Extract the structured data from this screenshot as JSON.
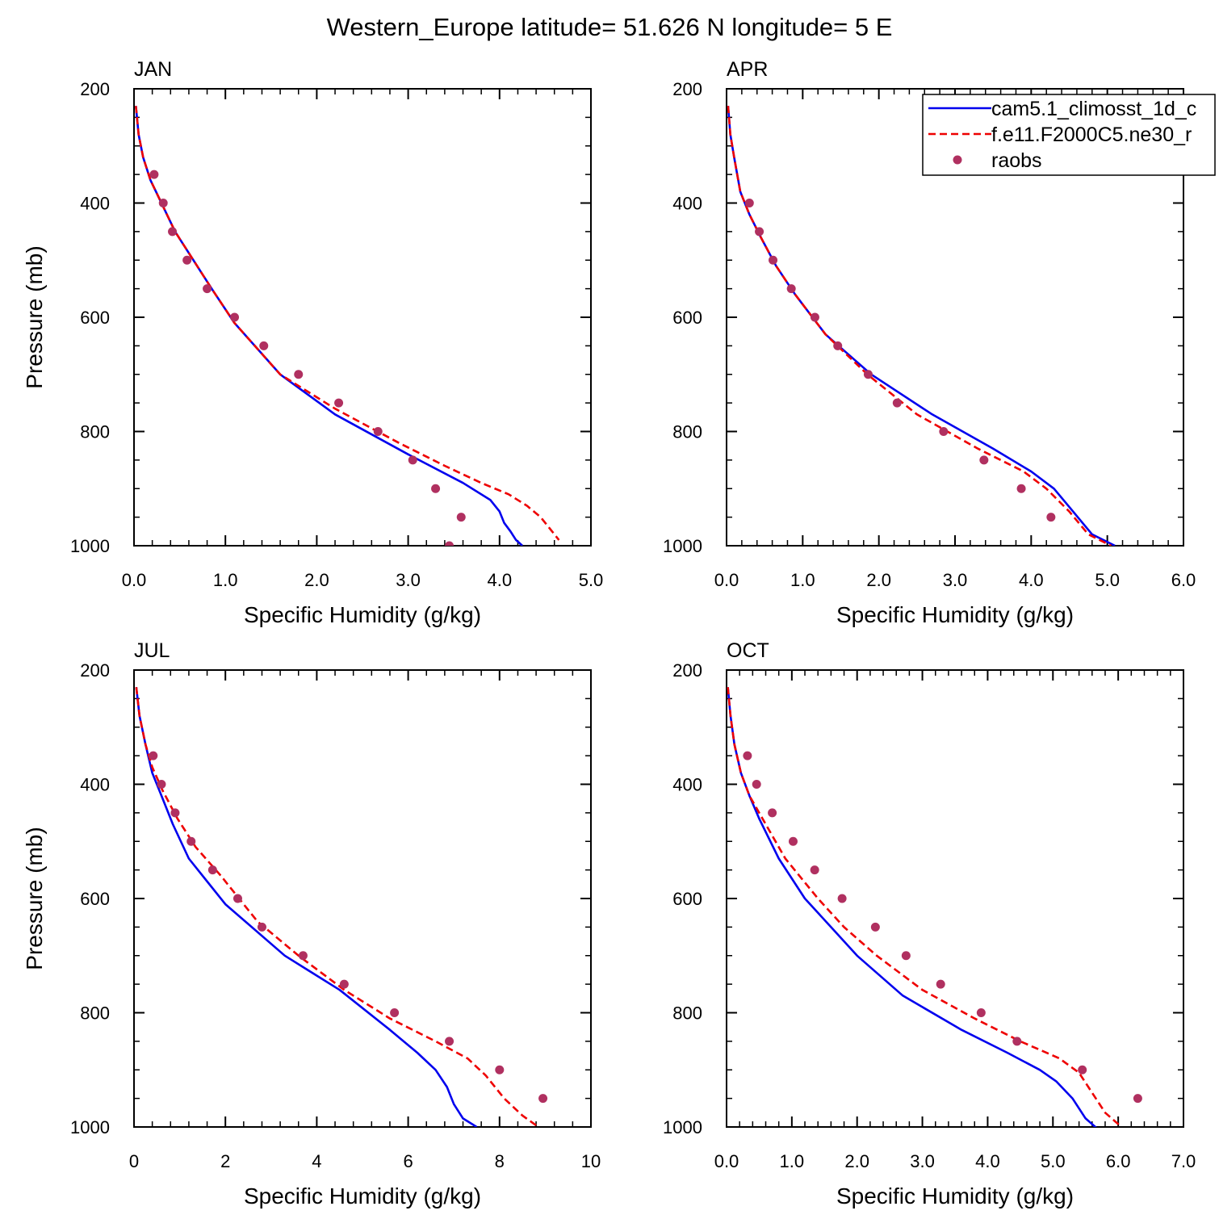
{
  "title": "Western_Europe  latitude= 51.626 N longitude= 5 E",
  "colors": {
    "model1": "#0000ee",
    "model2": "#ee0000",
    "obs": "#b03060"
  },
  "legend": {
    "placement": "top-right of APR panel",
    "entries": [
      {
        "label": "cam5.1_climosst_1d_c",
        "style": "solid",
        "color": "#0000ee"
      },
      {
        "label": "f.e11.F2000C5.ne30_r",
        "style": "dashed",
        "color": "#ee0000"
      },
      {
        "label": "raobs",
        "style": "marker",
        "color": "#b03060"
      }
    ]
  },
  "chart_data": [
    {
      "type": "line",
      "panel_label": "JAN",
      "xlabel": "Specific Humidity (g/kg)",
      "ylabel": "Pressure (mb)",
      "xlim": [
        0,
        5
      ],
      "ylim": [
        1000,
        200
      ],
      "xticks": [
        0,
        1,
        2,
        3,
        4,
        5
      ],
      "xticklabels": [
        "0.0",
        "1.0",
        "2.0",
        "3.0",
        "4.0",
        "5.0"
      ],
      "yticks": [
        200,
        400,
        600,
        800,
        1000
      ],
      "yticklabels": [
        "200",
        "400",
        "600",
        "800",
        "1000"
      ],
      "series": [
        {
          "name": "cam5.1_climosst_1d_c",
          "style": "solid",
          "color": "#0000ee",
          "x": [
            0.02,
            0.05,
            0.1,
            0.18,
            0.3,
            0.45,
            0.65,
            0.85,
            1.1,
            1.6,
            2.2,
            3.0,
            3.6,
            3.9,
            4.0,
            4.05,
            4.12,
            4.18,
            4.25
          ],
          "y": [
            230,
            280,
            320,
            360,
            400,
            450,
            500,
            550,
            610,
            700,
            770,
            840,
            890,
            920,
            940,
            960,
            975,
            990,
            1000
          ]
        },
        {
          "name": "f.e11.F2000C5.ne30_r",
          "style": "dashed",
          "color": "#ee0000",
          "x": [
            0.02,
            0.05,
            0.1,
            0.18,
            0.3,
            0.45,
            0.65,
            0.85,
            1.1,
            1.6,
            2.2,
            2.9,
            3.4,
            3.8,
            4.1,
            4.3,
            4.45,
            4.55,
            4.65
          ],
          "y": [
            230,
            280,
            320,
            360,
            400,
            450,
            500,
            550,
            610,
            700,
            760,
            820,
            860,
            890,
            910,
            930,
            950,
            970,
            990
          ]
        },
        {
          "name": "raobs",
          "style": "marker",
          "color": "#b03060",
          "x": [
            0.22,
            0.32,
            0.42,
            0.58,
            0.8,
            1.1,
            1.42,
            1.8,
            2.24,
            2.67,
            3.05,
            3.3,
            3.58,
            3.45
          ],
          "y": [
            350,
            400,
            450,
            500,
            550,
            600,
            650,
            700,
            750,
            800,
            850,
            900,
            950,
            1000
          ]
        }
      ]
    },
    {
      "type": "line",
      "panel_label": "APR",
      "xlabel": "Specific Humidity (g/kg)",
      "ylabel": "",
      "xlim": [
        0,
        6
      ],
      "ylim": [
        1000,
        200
      ],
      "xticks": [
        0,
        1,
        2,
        3,
        4,
        5,
        6
      ],
      "xticklabels": [
        "0.0",
        "1.0",
        "2.0",
        "3.0",
        "4.0",
        "5.0",
        "6.0"
      ],
      "yticks": [
        200,
        400,
        600,
        800,
        1000
      ],
      "yticklabels": [
        "200",
        "400",
        "600",
        "800",
        "1000"
      ],
      "series": [
        {
          "name": "cam5.1_climosst_1d_c",
          "style": "solid",
          "color": "#0000ee",
          "x": [
            0.02,
            0.05,
            0.1,
            0.18,
            0.3,
            0.45,
            0.65,
            0.9,
            1.3,
            1.9,
            2.7,
            3.5,
            4.0,
            4.3,
            4.55,
            4.8,
            5.1
          ],
          "y": [
            230,
            280,
            320,
            380,
            420,
            460,
            510,
            560,
            630,
            700,
            770,
            830,
            870,
            900,
            940,
            980,
            1000
          ]
        },
        {
          "name": "f.e11.F2000C5.ne30_r",
          "style": "dashed",
          "color": "#ee0000",
          "x": [
            0.02,
            0.05,
            0.1,
            0.18,
            0.3,
            0.45,
            0.65,
            0.9,
            1.3,
            1.85,
            2.5,
            3.3,
            3.9,
            4.2,
            4.5,
            4.75,
            5.05
          ],
          "y": [
            230,
            280,
            320,
            380,
            420,
            460,
            510,
            560,
            630,
            700,
            770,
            830,
            870,
            900,
            940,
            980,
            1000
          ]
        },
        {
          "name": "raobs",
          "style": "marker",
          "color": "#b03060",
          "x": [
            0.3,
            0.43,
            0.61,
            0.85,
            1.16,
            1.46,
            1.86,
            2.24,
            2.85,
            3.38,
            3.87,
            4.26
          ],
          "y": [
            400,
            450,
            500,
            550,
            600,
            650,
            700,
            750,
            800,
            850,
            900,
            950
          ]
        }
      ]
    },
    {
      "type": "line",
      "panel_label": "JUL",
      "xlabel": "Specific Humidity (g/kg)",
      "ylabel": "Pressure (mb)",
      "xlim": [
        0,
        10
      ],
      "ylim": [
        1000,
        200
      ],
      "xticks": [
        0,
        2,
        4,
        6,
        8,
        10
      ],
      "xticklabels": [
        "0",
        "2",
        "4",
        "6",
        "8",
        "10"
      ],
      "yticks": [
        200,
        400,
        600,
        800,
        1000
      ],
      "yticklabels": [
        "200",
        "400",
        "600",
        "800",
        "1000"
      ],
      "series": [
        {
          "name": "cam5.1_climosst_1d_c",
          "style": "solid",
          "color": "#0000ee",
          "x": [
            0.05,
            0.12,
            0.25,
            0.4,
            0.6,
            0.85,
            1.2,
            2.0,
            3.3,
            4.5,
            5.6,
            6.2,
            6.6,
            6.85,
            7.0,
            7.2,
            7.5
          ],
          "y": [
            230,
            280,
            330,
            380,
            420,
            470,
            530,
            610,
            700,
            760,
            830,
            870,
            900,
            930,
            960,
            985,
            1000
          ]
        },
        {
          "name": "f.e11.F2000C5.ne30_r",
          "style": "dashed",
          "color": "#ee0000",
          "x": [
            0.05,
            0.12,
            0.25,
            0.4,
            0.62,
            0.95,
            1.35,
            1.9,
            2.7,
            3.6,
            4.6,
            5.6,
            6.6,
            7.3,
            7.7,
            8.1,
            8.5,
            8.85
          ],
          "y": [
            230,
            280,
            330,
            370,
            410,
            460,
            510,
            560,
            640,
            700,
            760,
            810,
            850,
            880,
            910,
            950,
            980,
            1000
          ]
        },
        {
          "name": "raobs",
          "style": "marker",
          "color": "#b03060",
          "x": [
            0.42,
            0.6,
            0.9,
            1.25,
            1.72,
            2.27,
            2.8,
            3.7,
            4.6,
            5.7,
            6.9,
            8.0,
            8.95
          ],
          "y": [
            350,
            400,
            450,
            500,
            550,
            600,
            650,
            700,
            750,
            800,
            850,
            900,
            950
          ]
        }
      ]
    },
    {
      "type": "line",
      "panel_label": "OCT",
      "xlabel": "Specific Humidity (g/kg)",
      "ylabel": "",
      "xlim": [
        0,
        7
      ],
      "ylim": [
        1000,
        200
      ],
      "xticks": [
        0,
        1,
        2,
        3,
        4,
        5,
        6,
        7
      ],
      "xticklabels": [
        "0.0",
        "1.0",
        "2.0",
        "3.0",
        "4.0",
        "5.0",
        "6.0",
        "7.0"
      ],
      "yticks": [
        200,
        400,
        600,
        800,
        1000
      ],
      "yticklabels": [
        "200",
        "400",
        "600",
        "800",
        "1000"
      ],
      "series": [
        {
          "name": "cam5.1_climosst_1d_c",
          "style": "solid",
          "color": "#0000ee",
          "x": [
            0.02,
            0.06,
            0.12,
            0.22,
            0.35,
            0.5,
            0.8,
            1.2,
            1.6,
            2.0,
            2.7,
            3.6,
            4.3,
            4.8,
            5.05,
            5.3,
            5.5,
            5.7
          ],
          "y": [
            230,
            280,
            330,
            380,
            420,
            460,
            530,
            600,
            650,
            700,
            770,
            830,
            870,
            900,
            920,
            950,
            985,
            1005
          ]
        },
        {
          "name": "f.e11.F2000C5.ne30_r",
          "style": "dashed",
          "color": "#ee0000",
          "x": [
            0.02,
            0.06,
            0.12,
            0.22,
            0.35,
            0.55,
            0.9,
            1.4,
            1.8,
            2.3,
            3.0,
            3.8,
            4.5,
            5.1,
            5.4,
            5.6,
            5.8,
            6.05
          ],
          "y": [
            230,
            280,
            330,
            380,
            420,
            460,
            530,
            600,
            650,
            700,
            760,
            810,
            850,
            880,
            905,
            940,
            975,
            1000
          ]
        },
        {
          "name": "raobs",
          "style": "marker",
          "color": "#b03060",
          "x": [
            0.32,
            0.46,
            0.7,
            1.02,
            1.35,
            1.77,
            2.28,
            2.75,
            3.28,
            3.9,
            4.45,
            5.45,
            6.3
          ],
          "y": [
            350,
            400,
            450,
            500,
            550,
            600,
            650,
            700,
            750,
            800,
            850,
            900,
            950
          ]
        }
      ]
    }
  ]
}
